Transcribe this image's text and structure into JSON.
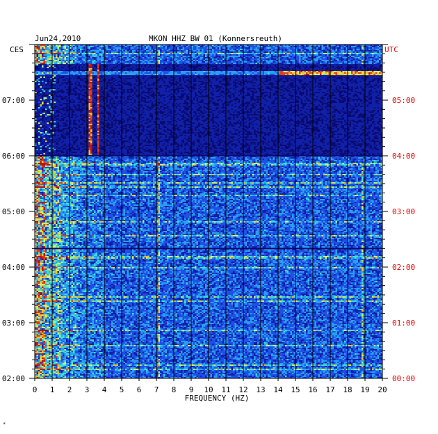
{
  "chart_data": {
    "type": "heatmap",
    "title": "MKON HHZ BW 01 (Konnersreuth)",
    "date": "Jun24,2010",
    "left_zone": "CES",
    "right_zone": "UTC",
    "xlabel": "FREQUENCY (HZ)",
    "xlim": [
      0,
      20
    ],
    "x_ticks": [
      "0",
      "1",
      "2",
      "3",
      "4",
      "5",
      "6",
      "7",
      "8",
      "9",
      "10",
      "11",
      "12",
      "13",
      "14",
      "15",
      "16",
      "17",
      "18",
      "19",
      "20"
    ],
    "left_time_labels": [
      "07:00",
      "06:00",
      "05:00",
      "04:00",
      "03:00",
      "02:00"
    ],
    "right_time_labels": [
      "05:00",
      "04:00",
      "03:00",
      "02:00",
      "01:00",
      "00:00"
    ],
    "colormap": [
      "#0a0a6e",
      "#1020a8",
      "#1e50e6",
      "#28a0f0",
      "#40e0d0",
      "#d8f060",
      "#f0c020",
      "#e04010",
      "#c01010"
    ],
    "features": [
      {
        "description_value": "strong low-frequency energy",
        "freq_range_hz": [
          0,
          2.5
        ],
        "time_range_local": [
          "02:00",
          "06:00"
        ]
      },
      {
        "description_value": "quiet period",
        "freq_range_hz": [
          0,
          20
        ],
        "time_range_local": [
          "06:00",
          "07:40"
        ]
      },
      {
        "description_value": "narrow band lines",
        "freq_hz": [
          3.1,
          3.6
        ],
        "time_range_local": [
          "06:00",
          "07:55"
        ]
      },
      {
        "description_value": "horizontal high-frequency burst",
        "freq_range_hz": [
          14,
          20
        ],
        "time_local": "07:30"
      },
      {
        "description_value": "persistent line",
        "freq_hz": 7.1,
        "time_range_local": [
          "02:00",
          "06:00"
        ]
      },
      {
        "description_value": "persistent line",
        "freq_hz": 18.8,
        "time_range_local": [
          "02:00",
          "06:00"
        ]
      }
    ]
  },
  "footer_mark": "*"
}
